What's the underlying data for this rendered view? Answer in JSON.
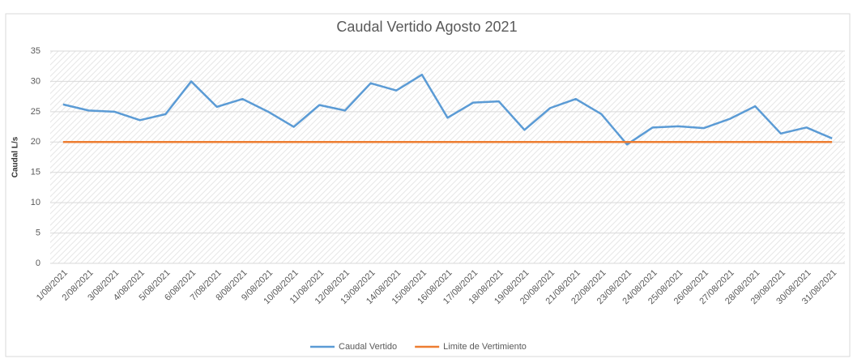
{
  "chart_data": {
    "type": "line",
    "title": "Caudal Vertido Agosto 2021",
    "y_label": "Caudal L/s",
    "categories": [
      "1/08/2021",
      "2/08/2021",
      "3/08/2021",
      "4/08/2021",
      "5/08/2021",
      "6/08/2021",
      "7/08/2021",
      "8/08/2021",
      "9/08/2021",
      "10/08/2021",
      "11/08/2021",
      "12/08/2021",
      "13/08/2021",
      "14/08/2021",
      "15/08/2021",
      "16/08/2021",
      "17/08/2021",
      "18/08/2021",
      "19/08/2021",
      "20/08/2021",
      "21/08/2021",
      "22/08/2021",
      "23/08/2021",
      "24/08/2021",
      "25/08/2021",
      "26/08/2021",
      "27/08/2021",
      "28/08/2021",
      "29/08/2021",
      "30/08/2021",
      "31/08/2021"
    ],
    "series": [
      {
        "name": "Caudal Vertido",
        "color": "#5b9bd5",
        "values": [
          26.2,
          25.2,
          25.0,
          23.6,
          24.6,
          30.0,
          25.8,
          27.1,
          25.0,
          22.5,
          26.1,
          25.2,
          29.7,
          28.5,
          31.1,
          24.0,
          26.5,
          26.7,
          22.0,
          25.6,
          27.1,
          24.6,
          19.6,
          22.4,
          22.6,
          22.3,
          23.8,
          25.9,
          21.4,
          22.4,
          20.6
        ]
      },
      {
        "name": "Limite de Vertimiento",
        "color": "#ed7d31",
        "values": [
          20,
          20,
          20,
          20,
          20,
          20,
          20,
          20,
          20,
          20,
          20,
          20,
          20,
          20,
          20,
          20,
          20,
          20,
          20,
          20,
          20,
          20,
          20,
          20,
          20,
          20,
          20,
          20,
          20,
          20,
          20
        ]
      }
    ],
    "ylim": [
      0,
      35
    ],
    "yticks": [
      0,
      5,
      10,
      15,
      20,
      25,
      30,
      35
    ],
    "grid": true,
    "legend": "bottom"
  }
}
